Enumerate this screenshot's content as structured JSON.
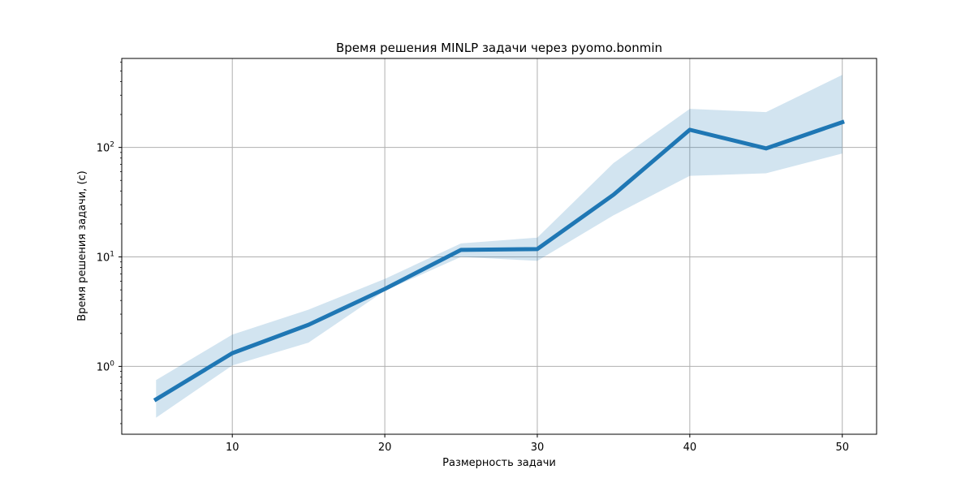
{
  "chart_data": {
    "type": "line",
    "title": "Время решения MINLP задачи через pyomo.bonmin",
    "xlabel": "Размерность задачи",
    "ylabel": "Время решения задачи, (с)",
    "yscale": "log",
    "xlim": [
      2.75,
      52.25
    ],
    "ylim": [
      0.24,
      650
    ],
    "grid": true,
    "x_ticks": [
      10,
      20,
      30,
      40,
      50
    ],
    "y_major_ticks": [
      1,
      10,
      100
    ],
    "y_tick_labels": [
      {
        "base": "10",
        "exp": "0"
      },
      {
        "base": "10",
        "exp": "1"
      },
      {
        "base": "10",
        "exp": "2"
      }
    ],
    "series": [
      {
        "x": [
          5,
          10,
          15,
          20,
          25,
          30,
          35,
          40,
          45,
          50
        ],
        "values": [
          0.5,
          1.32,
          2.4,
          5.1,
          11.6,
          11.8,
          37,
          145,
          98,
          170
        ],
        "band_lower": [
          0.34,
          1.02,
          1.65,
          4.9,
          10.0,
          9.2,
          24,
          55,
          58,
          88
        ],
        "band_upper": [
          0.75,
          1.95,
          3.3,
          6.3,
          13.3,
          15.0,
          72,
          225,
          210,
          460
        ]
      }
    ],
    "colors": {
      "line": "#1f77b4",
      "band": "#1f77b4",
      "grid": "#b0b0b0",
      "axis": "#000000"
    }
  }
}
